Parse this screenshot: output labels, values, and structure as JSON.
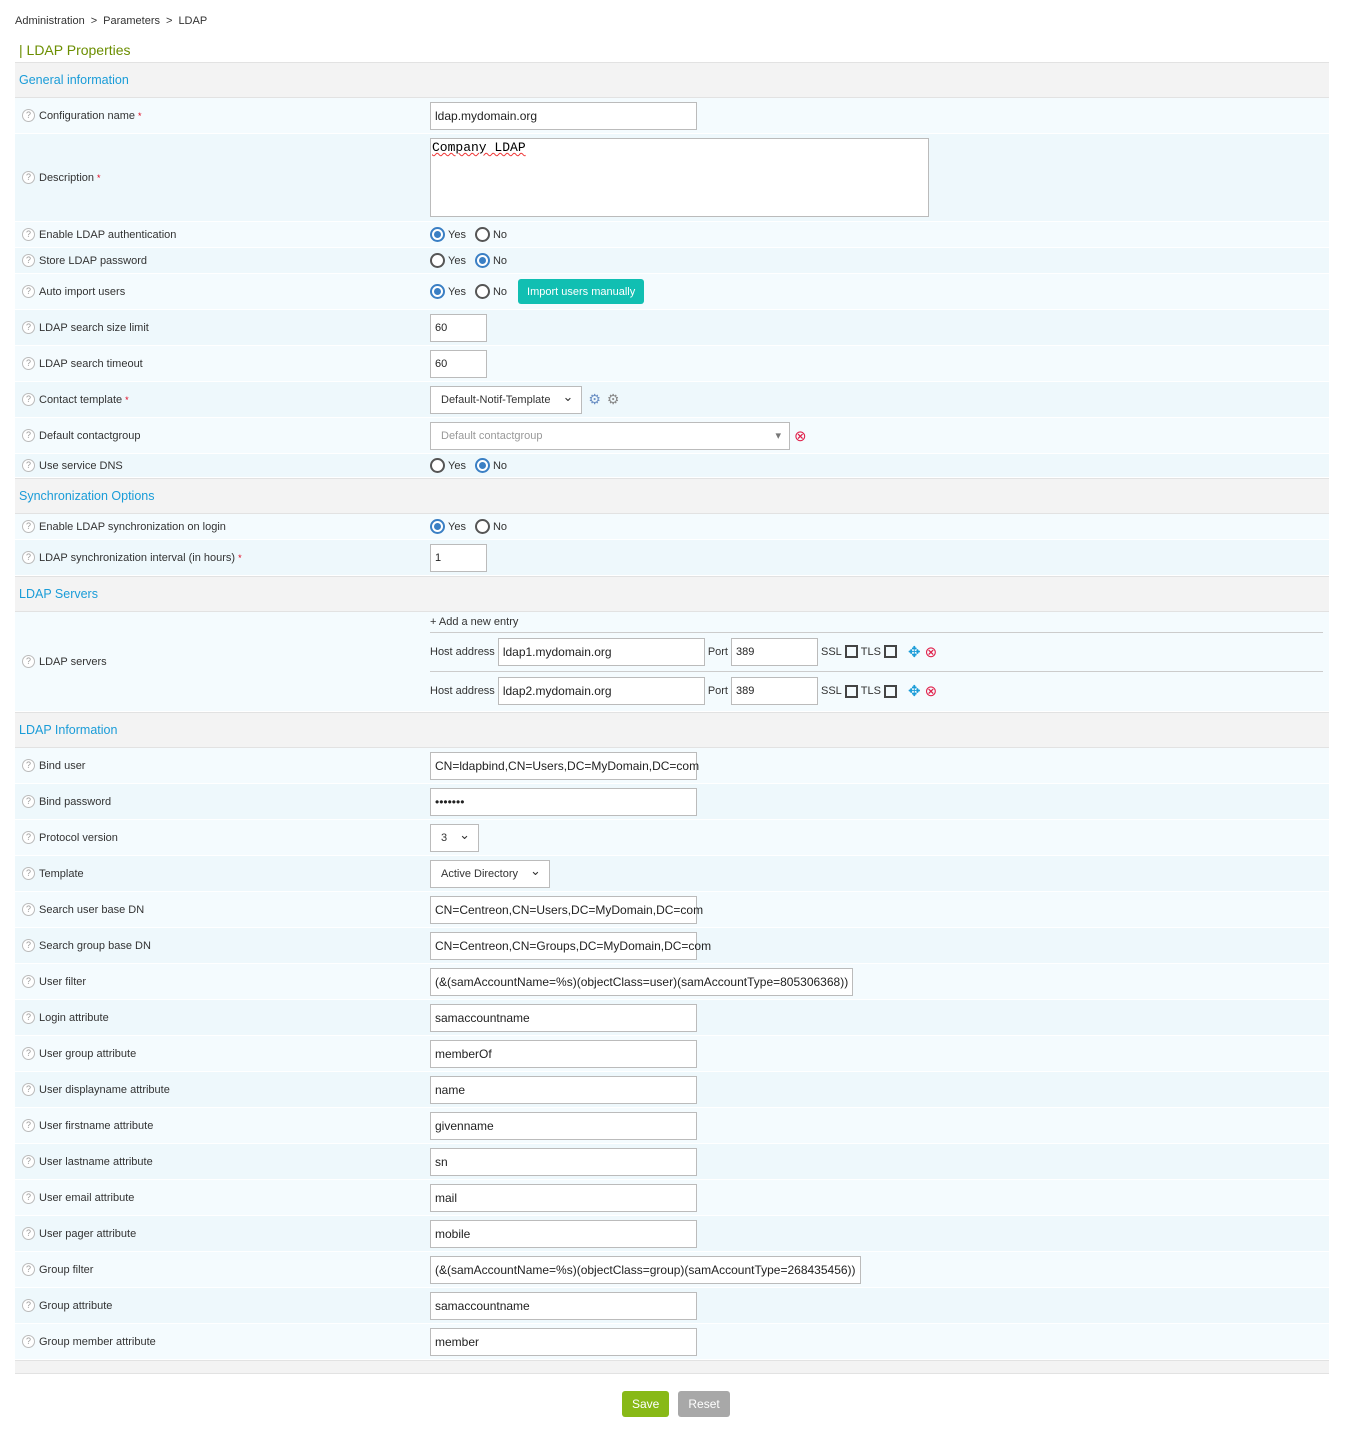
{
  "breadcrumb": [
    "Administration",
    "Parameters",
    "LDAP"
  ],
  "page_title": "| LDAP Properties",
  "colors": {
    "accent": "#1a9cd8",
    "title": "#6b8e00",
    "save": "#88b917",
    "import": "#11bfb2"
  },
  "sections": [
    {
      "title": "General information",
      "rows": [
        {
          "label": "Configuration name",
          "required": true,
          "type": "text",
          "value": "ldap.mydomain.org",
          "h": 36
        },
        {
          "label": "Description",
          "required": true,
          "type": "textarea",
          "value": "Company LDAP",
          "h": 88
        },
        {
          "label": "Enable LDAP authentication",
          "type": "radio",
          "value": "Yes",
          "h": 26
        },
        {
          "label": "Store LDAP password",
          "type": "radio",
          "value": "No",
          "h": 26
        },
        {
          "label": "Auto import users",
          "type": "radio",
          "value": "Yes",
          "button": "Import users manually",
          "h": 36
        },
        {
          "label": "LDAP search size limit",
          "type": "small",
          "value": "60",
          "h": 36
        },
        {
          "label": "LDAP search timeout",
          "type": "small",
          "value": "60",
          "h": 36
        },
        {
          "label": "Contact template",
          "required": true,
          "type": "select",
          "value": "Default-Notif-Template",
          "icons": [
            "info-gear-icon",
            "edit-gear-icon"
          ],
          "h": 36
        },
        {
          "label": "Default contactgroup",
          "type": "select2",
          "placeholder": "Default contactgroup",
          "h": 36
        },
        {
          "label": "Use service DNS",
          "type": "radio",
          "value": "No",
          "h": 24
        }
      ]
    },
    {
      "title": "Synchronization Options",
      "rows": [
        {
          "label": "Enable LDAP synchronization on login",
          "type": "radio",
          "value": "Yes",
          "h": 26
        },
        {
          "label": "LDAP synchronization interval (in hours)",
          "required": true,
          "type": "small",
          "value": "1",
          "h": 36
        }
      ]
    },
    {
      "title": "LDAP Servers",
      "rows": [
        {
          "label": "LDAP servers",
          "type": "servers",
          "h": 100
        }
      ]
    },
    {
      "title": "LDAP Information",
      "rows": [
        {
          "label": "Bind user",
          "type": "text",
          "value": "CN=ldapbind,CN=Users,DC=MyDomain,DC=com",
          "h": 36
        },
        {
          "label": "Bind password",
          "type": "text",
          "value": "•••••••",
          "h": 36
        },
        {
          "label": "Protocol version",
          "type": "select",
          "value": "3",
          "h": 36
        },
        {
          "label": "Template",
          "type": "select",
          "value": "Active Directory",
          "h": 36
        },
        {
          "label": "Search user base DN",
          "type": "text",
          "value": "CN=Centreon,CN=Users,DC=MyDomain,DC=com",
          "h": 36
        },
        {
          "label": "Search group base DN",
          "type": "text",
          "value": "CN=Centreon,CN=Groups,DC=MyDomain,DC=com",
          "h": 36
        },
        {
          "label": "User filter",
          "type": "text",
          "value": "(&(samAccountName=%s)(objectClass=user)(samAccountType=805306368))",
          "h": 36
        },
        {
          "label": "Login attribute",
          "type": "text",
          "value": "samaccountname",
          "h": 36
        },
        {
          "label": "User group attribute",
          "type": "text",
          "value": "memberOf",
          "h": 36
        },
        {
          "label": "User displayname attribute",
          "type": "text",
          "value": "name",
          "h": 36
        },
        {
          "label": "User firstname attribute",
          "type": "text",
          "value": "givenname",
          "h": 36
        },
        {
          "label": "User lastname attribute",
          "type": "text",
          "value": "sn",
          "h": 36
        },
        {
          "label": "User email attribute",
          "type": "text",
          "value": "mail",
          "h": 36
        },
        {
          "label": "User pager attribute",
          "type": "text",
          "value": "mobile",
          "h": 36
        },
        {
          "label": "Group filter",
          "type": "text",
          "value": "(&(samAccountName=%s)(objectClass=group)(samAccountType=268435456))",
          "h": 36
        },
        {
          "label": "Group attribute",
          "type": "text",
          "value": "samaccountname",
          "h": 36
        },
        {
          "label": "Group member attribute",
          "type": "text",
          "value": "member",
          "h": 36
        }
      ]
    }
  ],
  "radio_labels": [
    "Yes",
    "No"
  ],
  "servers": {
    "add_label": "+ Add a new entry",
    "host_label": "Host address",
    "port_label": "Port",
    "ssl_label": "SSL",
    "tls_label": "TLS",
    "entries": [
      {
        "host": "ldap1.mydomain.org",
        "port": "389",
        "ssl": false,
        "tls": false
      },
      {
        "host": "ldap2.mydomain.org",
        "port": "389",
        "ssl": false,
        "tls": false
      }
    ]
  },
  "actions": {
    "save": "Save",
    "reset": "Reset"
  }
}
